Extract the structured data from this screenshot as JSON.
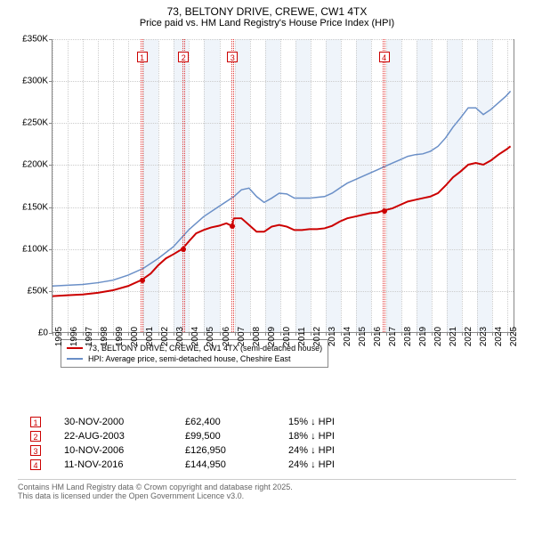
{
  "title_line1": "73, BELTONY DRIVE, CREWE, CW1 4TX",
  "title_line2": "Price paid vs. HM Land Registry's House Price Index (HPI)",
  "chart": {
    "type": "line",
    "background_color": "#ffffff",
    "grid_color": "#cccccc",
    "band_color": "#e6eef7",
    "axis_color": "#888888",
    "label_fontsize": 10,
    "xlim": [
      1995,
      2025.5
    ],
    "ylim": [
      0,
      350000
    ],
    "ytick_step": 50000,
    "yticks": [
      {
        "v": 0,
        "label": "£0"
      },
      {
        "v": 50000,
        "label": "£50K"
      },
      {
        "v": 100000,
        "label": "£100K"
      },
      {
        "v": 150000,
        "label": "£150K"
      },
      {
        "v": 200000,
        "label": "£200K"
      },
      {
        "v": 250000,
        "label": "£250K"
      },
      {
        "v": 300000,
        "label": "£300K"
      },
      {
        "v": 350000,
        "label": "£350K"
      }
    ],
    "xticks": [
      1995,
      1996,
      1997,
      1998,
      1999,
      2000,
      2001,
      2002,
      2003,
      2004,
      2005,
      2006,
      2007,
      2008,
      2009,
      2010,
      2011,
      2012,
      2013,
      2014,
      2015,
      2016,
      2017,
      2018,
      2019,
      2020,
      2021,
      2022,
      2023,
      2024,
      2025
    ],
    "bands": [
      {
        "from": 2001,
        "to": 2002
      },
      {
        "from": 2003,
        "to": 2004
      },
      {
        "from": 2005,
        "to": 2006
      },
      {
        "from": 2007,
        "to": 2008
      },
      {
        "from": 2009,
        "to": 2010
      },
      {
        "from": 2011,
        "to": 2012
      },
      {
        "from": 2013,
        "to": 2014
      },
      {
        "from": 2015,
        "to": 2016
      },
      {
        "from": 2017,
        "to": 2018
      },
      {
        "from": 2019,
        "to": 2020
      },
      {
        "from": 2021,
        "to": 2022
      },
      {
        "from": 2023,
        "to": 2024
      }
    ],
    "series": [
      {
        "name": "price_paid",
        "color": "#cc0000",
        "line_width": 2,
        "legend": "73, BELTONY DRIVE, CREWE, CW1 4TX (semi-detached house)",
        "points": [
          [
            1995,
            43000
          ],
          [
            1996,
            44000
          ],
          [
            1997,
            45000
          ],
          [
            1998,
            47000
          ],
          [
            1999,
            50000
          ],
          [
            2000,
            55000
          ],
          [
            2000.9,
            62400
          ],
          [
            2001.5,
            70000
          ],
          [
            2002,
            80000
          ],
          [
            2002.5,
            88000
          ],
          [
            2003,
            93000
          ],
          [
            2003.6,
            99500
          ],
          [
            2004,
            108000
          ],
          [
            2004.5,
            118000
          ],
          [
            2005,
            122000
          ],
          [
            2005.5,
            125000
          ],
          [
            2006,
            127000
          ],
          [
            2006.5,
            130000
          ],
          [
            2006.86,
            126950
          ],
          [
            2007,
            136000
          ],
          [
            2007.5,
            136000
          ],
          [
            2008,
            128000
          ],
          [
            2008.5,
            120000
          ],
          [
            2009,
            120000
          ],
          [
            2009.5,
            126000
          ],
          [
            2010,
            128000
          ],
          [
            2010.5,
            126000
          ],
          [
            2011,
            122000
          ],
          [
            2011.5,
            122000
          ],
          [
            2012,
            123000
          ],
          [
            2012.5,
            123000
          ],
          [
            2013,
            124000
          ],
          [
            2013.5,
            127000
          ],
          [
            2014,
            132000
          ],
          [
            2014.5,
            136000
          ],
          [
            2015,
            138000
          ],
          [
            2015.5,
            140000
          ],
          [
            2016,
            142000
          ],
          [
            2016.5,
            143000
          ],
          [
            2016.86,
            144950
          ],
          [
            2017.5,
            148000
          ],
          [
            2018,
            152000
          ],
          [
            2018.5,
            156000
          ],
          [
            2019,
            158000
          ],
          [
            2019.5,
            160000
          ],
          [
            2020,
            162000
          ],
          [
            2020.5,
            166000
          ],
          [
            2021,
            175000
          ],
          [
            2021.5,
            185000
          ],
          [
            2022,
            192000
          ],
          [
            2022.5,
            200000
          ],
          [
            2023,
            202000
          ],
          [
            2023.5,
            200000
          ],
          [
            2024,
            205000
          ],
          [
            2024.5,
            212000
          ],
          [
            2025,
            218000
          ],
          [
            2025.3,
            222000
          ]
        ]
      },
      {
        "name": "hpi",
        "color": "#6a8fc7",
        "line_width": 1.5,
        "legend": "HPI: Average price, semi-detached house, Cheshire East",
        "points": [
          [
            1995,
            55000
          ],
          [
            1996,
            56000
          ],
          [
            1997,
            57000
          ],
          [
            1998,
            59000
          ],
          [
            1999,
            62000
          ],
          [
            2000,
            68000
          ],
          [
            2001,
            76000
          ],
          [
            2002,
            88000
          ],
          [
            2003,
            102000
          ],
          [
            2004,
            122000
          ],
          [
            2005,
            138000
          ],
          [
            2006,
            150000
          ],
          [
            2007,
            162000
          ],
          [
            2007.5,
            170000
          ],
          [
            2008,
            172000
          ],
          [
            2008.5,
            162000
          ],
          [
            2009,
            155000
          ],
          [
            2009.5,
            160000
          ],
          [
            2010,
            166000
          ],
          [
            2010.5,
            165000
          ],
          [
            2011,
            160000
          ],
          [
            2011.5,
            160000
          ],
          [
            2012,
            160000
          ],
          [
            2012.5,
            161000
          ],
          [
            2013,
            162000
          ],
          [
            2013.5,
            166000
          ],
          [
            2014,
            172000
          ],
          [
            2014.5,
            178000
          ],
          [
            2015,
            182000
          ],
          [
            2015.5,
            186000
          ],
          [
            2016,
            190000
          ],
          [
            2016.5,
            194000
          ],
          [
            2017,
            198000
          ],
          [
            2017.5,
            202000
          ],
          [
            2018,
            206000
          ],
          [
            2018.5,
            210000
          ],
          [
            2019,
            212000
          ],
          [
            2019.5,
            213000
          ],
          [
            2020,
            216000
          ],
          [
            2020.5,
            222000
          ],
          [
            2021,
            232000
          ],
          [
            2021.5,
            245000
          ],
          [
            2022,
            256000
          ],
          [
            2022.5,
            268000
          ],
          [
            2023,
            268000
          ],
          [
            2023.5,
            260000
          ],
          [
            2024,
            266000
          ],
          [
            2024.5,
            274000
          ],
          [
            2025,
            282000
          ],
          [
            2025.3,
            288000
          ]
        ]
      }
    ],
    "markers": [
      {
        "n": "1",
        "x": 2000.9,
        "y": 62400
      },
      {
        "n": "2",
        "x": 2003.64,
        "y": 99500
      },
      {
        "n": "3",
        "x": 2006.86,
        "y": 126950
      },
      {
        "n": "4",
        "x": 2016.86,
        "y": 144950
      }
    ],
    "legend_position": "bottom-left-inset"
  },
  "records": [
    {
      "n": "1",
      "date": "30-NOV-2000",
      "price": "£62,400",
      "pct": "15% ↓ HPI"
    },
    {
      "n": "2",
      "date": "22-AUG-2003",
      "price": "£99,500",
      "pct": "18% ↓ HPI"
    },
    {
      "n": "3",
      "date": "10-NOV-2006",
      "price": "£126,950",
      "pct": "24% ↓ HPI"
    },
    {
      "n": "4",
      "date": "11-NOV-2016",
      "price": "£144,950",
      "pct": "24% ↓ HPI"
    }
  ],
  "footer_line1": "Contains HM Land Registry data © Crown copyright and database right 2025.",
  "footer_line2": "This data is licensed under the Open Government Licence v3.0."
}
